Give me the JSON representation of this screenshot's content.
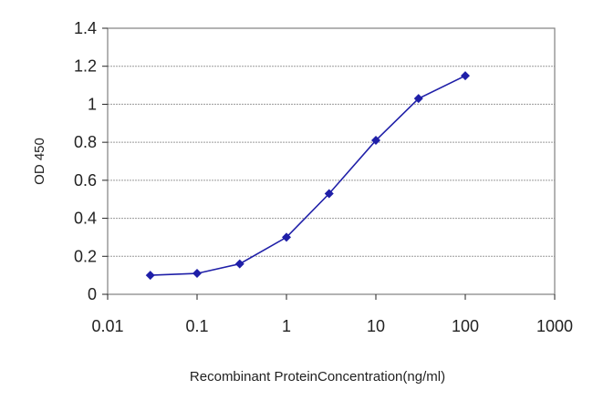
{
  "chart_data": {
    "type": "line",
    "title": "",
    "xlabel": "Recombinant ProteinConcentration(ng/ml)",
    "ylabel": "OD 450",
    "x_scale": "log",
    "xlim": [
      0.01,
      1000
    ],
    "ylim": [
      0,
      1.4
    ],
    "x_ticks": [
      0.01,
      0.1,
      1,
      10,
      100,
      1000
    ],
    "x_tick_labels": [
      "0.01",
      "0.1",
      "1",
      "10",
      "100",
      "1000"
    ],
    "y_ticks": [
      0,
      0.2,
      0.4,
      0.6,
      0.8,
      1,
      1.2,
      1.4
    ],
    "y_tick_labels": [
      "0",
      "0.2",
      "0.4",
      "0.6",
      "0.8",
      "1",
      "1.2",
      "1.4"
    ],
    "grid": "horizontal",
    "legend": "none",
    "series": [
      {
        "x": [
          0.03,
          0.1,
          0.3,
          1,
          3,
          10,
          30,
          100
        ],
        "y": [
          0.1,
          0.11,
          0.16,
          0.3,
          0.53,
          0.81,
          1.03,
          1.15
        ]
      }
    ],
    "colors": {
      "series": "#1f1fa8",
      "grid": "#9a9a9a",
      "frame": "#808080",
      "plot_background": "#ffffff"
    }
  }
}
